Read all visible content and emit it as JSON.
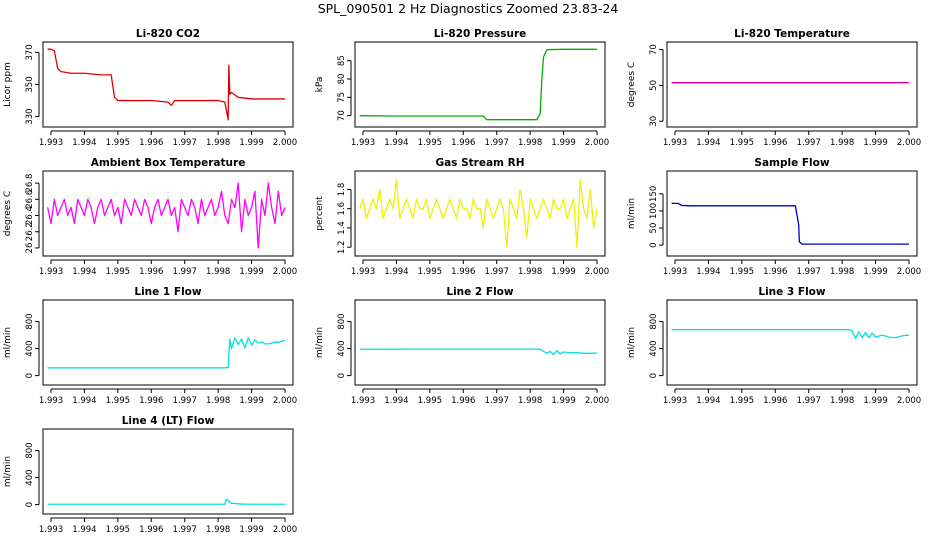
{
  "page": {
    "title": "SPL_090501  2 Hz Diagnostics Zoomed 23.83-24"
  },
  "chart_data": [
    {
      "type": "line",
      "title": "Li-820 CO2",
      "ylabel": "Licor ppm",
      "color": "#e00000",
      "xlim": [
        1.993,
        2.0
      ],
      "ylim": [
        326,
        374
      ],
      "yticks": [
        330,
        350,
        370
      ],
      "xticks": [
        1.993,
        1.994,
        1.995,
        1.996,
        1.997,
        1.998,
        1.999,
        2.0
      ],
      "series": [
        {
          "x": [
            1.9929,
            1.993,
            1.9931,
            1.9932,
            1.9933,
            1.9936,
            1.994,
            1.9945,
            1.9948,
            1.9949,
            1.995,
            1.9955,
            1.996,
            1.9965,
            1.9966,
            1.9967,
            1.997,
            1.9975,
            1.998,
            1.9982,
            1.9983,
            1.99832,
            1.99835,
            1.9984,
            1.9986,
            1.999,
            1.9995,
            2.0
          ],
          "y": [
            372,
            372,
            371,
            360,
            358,
            357,
            357,
            356,
            356,
            342,
            340,
            340,
            340,
            339,
            337,
            340,
            340,
            340,
            340,
            339,
            328,
            362,
            344,
            345,
            342,
            341,
            341,
            341
          ]
        }
      ]
    },
    {
      "type": "line",
      "title": "Li-820 Pressure",
      "ylabel": "kPa",
      "color": "#00b000",
      "xlim": [
        1.993,
        2.0
      ],
      "ylim": [
        68,
        89
      ],
      "yticks": [
        70,
        75,
        80,
        85
      ],
      "xticks": [
        1.993,
        1.994,
        1.995,
        1.996,
        1.997,
        1.998,
        1.999,
        2.0
      ],
      "series": [
        {
          "x": [
            1.9929,
            1.994,
            1.995,
            1.9966,
            1.9967,
            1.9975,
            1.9982,
            1.9983,
            1.99835,
            1.9984,
            1.9985,
            1.999,
            1.9995,
            2.0
          ],
          "y": [
            70.0,
            69.9,
            69.9,
            69.9,
            68.9,
            68.9,
            68.9,
            70.5,
            80.0,
            86.0,
            88.0,
            88.1,
            88.1,
            88.1
          ]
        }
      ]
    },
    {
      "type": "line",
      "title": "Li-820 Temperature",
      "ylabel": "degrees C",
      "color": "#e000a0",
      "xlim": [
        1.993,
        2.0
      ],
      "ylim": [
        29,
        72
      ],
      "yticks": [
        30,
        50,
        70
      ],
      "xticks": [
        1.993,
        1.994,
        1.995,
        1.996,
        1.997,
        1.998,
        1.999,
        2.0
      ],
      "series": [
        {
          "x": [
            1.9929,
            2.0
          ],
          "y": [
            51.5,
            51.5
          ]
        }
      ]
    },
    {
      "type": "line",
      "title": "Ambient Box Temperature",
      "ylabel": "degrees C",
      "color": "#ff00ff",
      "xlim": [
        1.993,
        2.0
      ],
      "ylim": [
        25.95,
        26.9
      ],
      "yticks": [
        26.0,
        26.2,
        26.4,
        26.6,
        26.8
      ],
      "xticks": [
        1.993,
        1.994,
        1.995,
        1.996,
        1.997,
        1.998,
        1.999,
        2.0
      ],
      "series": [
        {
          "x": [
            1.9929,
            1.993,
            1.9931,
            1.9932,
            1.9933,
            1.9934,
            1.9935,
            1.9936,
            1.9937,
            1.9938,
            1.9939,
            1.994,
            1.9941,
            1.9942,
            1.9943,
            1.9944,
            1.9945,
            1.9946,
            1.9947,
            1.9948,
            1.9949,
            1.995,
            1.9951,
            1.9952,
            1.9953,
            1.9954,
            1.9955,
            1.9956,
            1.9957,
            1.9958,
            1.9959,
            1.996,
            1.9961,
            1.9962,
            1.9963,
            1.9964,
            1.9965,
            1.9966,
            1.9967,
            1.9968,
            1.9969,
            1.997,
            1.9971,
            1.9972,
            1.9973,
            1.9974,
            1.9975,
            1.9976,
            1.9977,
            1.9978,
            1.9979,
            1.998,
            1.9981,
            1.9982,
            1.9983,
            1.9984,
            1.9985,
            1.9986,
            1.9987,
            1.9988,
            1.9989,
            1.999,
            1.9991,
            1.9992,
            1.9993,
            1.9994,
            1.9995,
            1.9996,
            1.9997,
            1.9998,
            1.9999,
            2.0
          ],
          "y": [
            26.5,
            26.3,
            26.6,
            26.4,
            26.5,
            26.6,
            26.4,
            26.5,
            26.3,
            26.6,
            26.5,
            26.4,
            26.6,
            26.5,
            26.3,
            26.5,
            26.6,
            26.4,
            26.5,
            26.6,
            26.4,
            26.5,
            26.3,
            26.6,
            26.5,
            26.4,
            26.6,
            26.5,
            26.4,
            26.6,
            26.5,
            26.3,
            26.5,
            26.6,
            26.4,
            26.5,
            26.6,
            26.4,
            26.5,
            26.2,
            26.6,
            26.5,
            26.4,
            26.6,
            26.5,
            26.3,
            26.6,
            26.4,
            26.5,
            26.6,
            26.4,
            26.5,
            26.7,
            26.4,
            26.3,
            26.6,
            26.5,
            26.8,
            26.2,
            26.6,
            26.4,
            26.5,
            26.7,
            26.0,
            26.6,
            26.4,
            26.8,
            26.5,
            26.3,
            26.7,
            26.4,
            26.5
          ]
        }
      ]
    },
    {
      "type": "line",
      "title": "Gas Stream RH",
      "ylabel": "percent",
      "color": "#f0f000",
      "xlim": [
        1.993,
        2.0
      ],
      "ylim": [
        1.15,
        1.95
      ],
      "yticks": [
        1.2,
        1.4,
        1.6,
        1.8
      ],
      "xticks": [
        1.993,
        1.994,
        1.995,
        1.996,
        1.997,
        1.998,
        1.999,
        2.0
      ],
      "series": [
        {
          "x": [
            1.9929,
            1.993,
            1.9931,
            1.9932,
            1.9933,
            1.9934,
            1.9935,
            1.9936,
            1.9937,
            1.9938,
            1.9939,
            1.994,
            1.9941,
            1.9942,
            1.9943,
            1.9944,
            1.9945,
            1.9946,
            1.9947,
            1.9948,
            1.9949,
            1.995,
            1.9951,
            1.9952,
            1.9953,
            1.9954,
            1.9955,
            1.9956,
            1.9957,
            1.9958,
            1.9959,
            1.996,
            1.9961,
            1.9962,
            1.9963,
            1.9964,
            1.9965,
            1.9966,
            1.9967,
            1.9968,
            1.9969,
            1.997,
            1.9971,
            1.9972,
            1.9973,
            1.9974,
            1.9975,
            1.9976,
            1.9977,
            1.9978,
            1.9979,
            1.998,
            1.9981,
            1.9982,
            1.9983,
            1.9984,
            1.9985,
            1.9986,
            1.9987,
            1.9988,
            1.9989,
            1.999,
            1.9991,
            1.9992,
            1.9993,
            1.9994,
            1.9995,
            1.9996,
            1.9997,
            1.9998,
            1.9999,
            2.0
          ],
          "y": [
            1.6,
            1.7,
            1.5,
            1.6,
            1.7,
            1.6,
            1.8,
            1.5,
            1.6,
            1.7,
            1.6,
            1.9,
            1.5,
            1.6,
            1.7,
            1.6,
            1.5,
            1.7,
            1.6,
            1.6,
            1.7,
            1.5,
            1.6,
            1.7,
            1.6,
            1.5,
            1.6,
            1.7,
            1.6,
            1.5,
            1.7,
            1.6,
            1.6,
            1.5,
            1.7,
            1.6,
            1.6,
            1.4,
            1.7,
            1.6,
            1.5,
            1.6,
            1.7,
            1.6,
            1.2,
            1.7,
            1.6,
            1.5,
            1.8,
            1.6,
            1.3,
            1.7,
            1.6,
            1.5,
            1.6,
            1.7,
            1.6,
            1.5,
            1.7,
            1.6,
            1.6,
            1.7,
            1.5,
            1.6,
            1.7,
            1.2,
            1.9,
            1.6,
            1.5,
            1.8,
            1.4,
            1.6
          ]
        }
      ]
    },
    {
      "type": "line",
      "title": "Sample Flow",
      "ylabel": "ml/min",
      "color": "#0000c0",
      "xlim": [
        1.993,
        2.0
      ],
      "ylim": [
        -20,
        205
      ],
      "yticks": [
        0,
        50,
        100,
        150
      ],
      "xticks": [
        1.993,
        1.994,
        1.995,
        1.996,
        1.997,
        1.998,
        1.999,
        2.0
      ],
      "series": [
        {
          "x": [
            1.9929,
            1.9931,
            1.9932,
            1.9935,
            1.994,
            1.995,
            1.996,
            1.9966,
            1.9967,
            1.99672,
            1.9968,
            1.9975,
            1.9985,
            2.0
          ],
          "y": [
            122,
            122,
            116,
            115,
            115,
            115,
            115,
            115,
            60,
            10,
            3,
            3,
            3,
            3
          ]
        }
      ]
    },
    {
      "type": "line",
      "title": "Line 1 Flow",
      "ylabel": "ml/min",
      "color": "#00e0e0",
      "xlim": [
        1.993,
        2.0
      ],
      "ylim": [
        -80,
        1060
      ],
      "yticks": [
        0,
        400,
        800
      ],
      "xticks": [
        1.993,
        1.994,
        1.995,
        1.996,
        1.997,
        1.998,
        1.999,
        2.0
      ],
      "series": [
        {
          "x": [
            1.9929,
            1.995,
            1.9982,
            1.9983,
            1.99835,
            1.9984,
            1.9985,
            1.9986,
            1.9987,
            1.9988,
            1.9989,
            1.999,
            1.9991,
            1.9992,
            1.9993,
            1.9994,
            1.9995,
            1.9996,
            1.9997,
            1.9998,
            1.9999,
            2.0
          ],
          "y": [
            115,
            115,
            115,
            120,
            540,
            400,
            560,
            460,
            540,
            410,
            560,
            450,
            530,
            480,
            500,
            470,
            470,
            480,
            500,
            490,
            510,
            520
          ]
        }
      ]
    },
    {
      "type": "line",
      "title": "Line 2 Flow",
      "ylabel": "ml/min",
      "color": "#00e0e0",
      "xlim": [
        1.993,
        2.0
      ],
      "ylim": [
        -80,
        1060
      ],
      "yticks": [
        0,
        400,
        800
      ],
      "xticks": [
        1.993,
        1.994,
        1.995,
        1.996,
        1.997,
        1.998,
        1.999,
        2.0
      ],
      "series": [
        {
          "x": [
            1.9929,
            1.995,
            1.9982,
            1.9983,
            1.9985,
            1.9986,
            1.9987,
            1.9988,
            1.9989,
            1.999,
            1.9992,
            1.9994,
            1.9996,
            1.9998,
            2.0
          ],
          "y": [
            390,
            392,
            392,
            390,
            330,
            360,
            310,
            370,
            320,
            350,
            340,
            340,
            330,
            330,
            335
          ]
        }
      ]
    },
    {
      "type": "line",
      "title": "Line 3 Flow",
      "ylabel": "ml/min",
      "color": "#00e0e0",
      "xlim": [
        1.993,
        2.0
      ],
      "ylim": [
        -80,
        1060
      ],
      "yticks": [
        0,
        400,
        800
      ],
      "xticks": [
        1.993,
        1.994,
        1.995,
        1.996,
        1.997,
        1.998,
        1.999,
        2.0
      ],
      "series": [
        {
          "x": [
            1.9929,
            1.994,
            1.995,
            1.996,
            1.997,
            1.9982,
            1.9983,
            1.9984,
            1.9985,
            1.9986,
            1.9987,
            1.9988,
            1.9989,
            1.999,
            1.9992,
            1.9994,
            1.9996,
            1.9998,
            2.0
          ],
          "y": [
            680,
            680,
            680,
            680,
            680,
            680,
            660,
            550,
            650,
            560,
            640,
            560,
            630,
            570,
            600,
            570,
            560,
            590,
            600
          ]
        }
      ]
    },
    {
      "type": "line",
      "title": "Line 4 (LT) Flow",
      "ylabel": "ml/min",
      "color": "#00e0e0",
      "xlim": [
        1.993,
        2.0
      ],
      "ylim": [
        -80,
        1060
      ],
      "yticks": [
        0,
        400,
        800
      ],
      "xticks": [
        1.993,
        1.994,
        1.995,
        1.996,
        1.997,
        1.998,
        1.999,
        2.0
      ],
      "series": [
        {
          "x": [
            1.9929,
            1.995,
            1.9982,
            1.99825,
            1.9983,
            1.9984,
            1.9985,
            1.9987,
            1.999,
            2.0
          ],
          "y": [
            5,
            5,
            5,
            80,
            60,
            20,
            15,
            8,
            5,
            5
          ]
        }
      ]
    }
  ]
}
